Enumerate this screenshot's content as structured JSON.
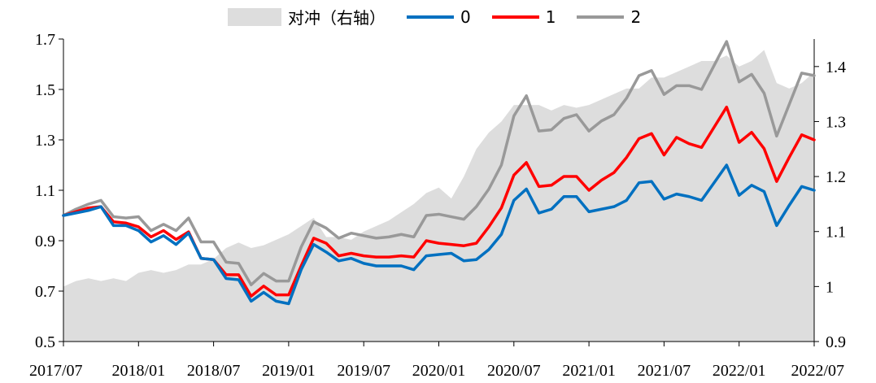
{
  "chart_data": {
    "type": "line",
    "x": [
      "2017/07",
      "2017/08",
      "2017/09",
      "2017/10",
      "2017/11",
      "2017/12",
      "2018/01",
      "2018/02",
      "2018/03",
      "2018/04",
      "2018/05",
      "2018/06",
      "2018/07",
      "2018/08",
      "2018/09",
      "2018/10",
      "2018/11",
      "2018/12",
      "2019/01",
      "2019/02",
      "2019/03",
      "2019/04",
      "2019/05",
      "2019/06",
      "2019/07",
      "2019/08",
      "2019/09",
      "2019/10",
      "2019/11",
      "2019/12",
      "2020/01",
      "2020/02",
      "2020/03",
      "2020/04",
      "2020/05",
      "2020/06",
      "2020/07",
      "2020/08",
      "2020/09",
      "2020/10",
      "2020/11",
      "2020/12",
      "2021/01",
      "2021/02",
      "2021/03",
      "2021/04",
      "2021/05",
      "2021/06",
      "2021/07",
      "2021/08",
      "2021/09",
      "2021/10",
      "2021/11",
      "2021/12",
      "2022/01",
      "2022/02",
      "2022/03",
      "2022/04",
      "2022/05",
      "2022/06",
      "2022/07"
    ],
    "x_tick_labels": [
      "2017/07",
      "2018/01",
      "2018/07",
      "2019/01",
      "2019/07",
      "2020/01",
      "2020/07",
      "2021/01",
      "2021/07",
      "2022/01",
      "2022/07"
    ],
    "left_axis": {
      "ylim": [
        0.5,
        1.7
      ],
      "ticks": [
        "0.5",
        "0.7",
        "0.9",
        "1.1",
        "1.3",
        "1.5",
        "1.7"
      ]
    },
    "right_axis": {
      "ylim": [
        0.9,
        1.45
      ],
      "ticks": [
        "0.9",
        "1",
        "1.1",
        "1.2",
        "1.3",
        "1.4"
      ]
    },
    "area": {
      "name": "对冲（右轴）",
      "axis": "right",
      "color": "#dddddd",
      "values": [
        1.0,
        1.01,
        1.015,
        1.01,
        1.015,
        1.01,
        1.025,
        1.03,
        1.025,
        1.03,
        1.04,
        1.04,
        1.05,
        1.07,
        1.08,
        1.07,
        1.075,
        1.085,
        1.095,
        1.11,
        1.125,
        1.09,
        1.09,
        1.085,
        1.1,
        1.11,
        1.12,
        1.135,
        1.15,
        1.17,
        1.18,
        1.16,
        1.2,
        1.25,
        1.28,
        1.3,
        1.33,
        1.33,
        1.33,
        1.32,
        1.33,
        1.325,
        1.33,
        1.34,
        1.35,
        1.36,
        1.36,
        1.38,
        1.38,
        1.39,
        1.4,
        1.41,
        1.41,
        1.42,
        1.4,
        1.41,
        1.43,
        1.37,
        1.36,
        1.37,
        1.39
      ]
    },
    "series": [
      {
        "name": "0",
        "axis": "left",
        "color": "#0070c0",
        "values": [
          1.0,
          1.01,
          1.02,
          1.035,
          0.96,
          0.96,
          0.94,
          0.895,
          0.92,
          0.885,
          0.93,
          0.83,
          0.825,
          0.75,
          0.745,
          0.66,
          0.695,
          0.66,
          0.65,
          0.785,
          0.885,
          0.855,
          0.82,
          0.83,
          0.81,
          0.8,
          0.8,
          0.8,
          0.785,
          0.84,
          0.845,
          0.85,
          0.82,
          0.825,
          0.865,
          0.925,
          1.06,
          1.105,
          1.01,
          1.025,
          1.075,
          1.075,
          1.015,
          1.025,
          1.035,
          1.06,
          1.13,
          1.135,
          1.065,
          1.085,
          1.075,
          1.06,
          1.13,
          1.2,
          1.08,
          1.12,
          1.095,
          0.96,
          1.04,
          1.115,
          1.1
        ]
      },
      {
        "name": "1",
        "axis": "left",
        "color": "#ff0000",
        "values": [
          1.0,
          1.015,
          1.03,
          1.035,
          0.975,
          0.97,
          0.955,
          0.915,
          0.94,
          0.905,
          0.935,
          0.83,
          0.825,
          0.765,
          0.765,
          0.68,
          0.72,
          0.685,
          0.685,
          0.8,
          0.91,
          0.89,
          0.84,
          0.85,
          0.84,
          0.835,
          0.835,
          0.84,
          0.835,
          0.9,
          0.89,
          0.885,
          0.88,
          0.89,
          0.955,
          1.03,
          1.16,
          1.21,
          1.115,
          1.12,
          1.155,
          1.155,
          1.1,
          1.14,
          1.17,
          1.23,
          1.305,
          1.325,
          1.24,
          1.31,
          1.285,
          1.27,
          1.35,
          1.43,
          1.29,
          1.33,
          1.265,
          1.135,
          1.23,
          1.32,
          1.3
        ]
      },
      {
        "name": "2",
        "axis": "left",
        "color": "#999999",
        "values": [
          1.0,
          1.025,
          1.045,
          1.06,
          0.995,
          0.99,
          0.995,
          0.94,
          0.965,
          0.94,
          0.99,
          0.895,
          0.895,
          0.815,
          0.81,
          0.725,
          0.77,
          0.74,
          0.74,
          0.875,
          0.975,
          0.95,
          0.91,
          0.93,
          0.92,
          0.91,
          0.915,
          0.925,
          0.915,
          1.0,
          1.005,
          0.995,
          0.985,
          1.035,
          1.105,
          1.2,
          1.395,
          1.475,
          1.335,
          1.34,
          1.385,
          1.4,
          1.335,
          1.375,
          1.4,
          1.465,
          1.555,
          1.575,
          1.48,
          1.515,
          1.515,
          1.5,
          1.595,
          1.69,
          1.53,
          1.56,
          1.485,
          1.315,
          1.44,
          1.565,
          1.555
        ]
      }
    ]
  }
}
